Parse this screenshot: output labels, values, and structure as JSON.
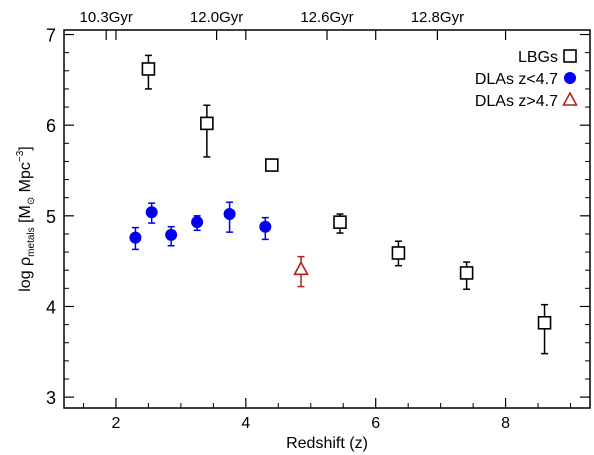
{
  "chart_data": {
    "type": "scatter",
    "xlabel": "Redshift (z)",
    "ylabel_parts": {
      "log": "log",
      "rho": "ρ",
      "rho_sub": "metals",
      "bracket_open": " [M",
      "sun": "⊙",
      "unit": " Mpc",
      "exp": "−3",
      "bracket_close": "]"
    },
    "xlim": [
      1.2,
      9.3
    ],
    "ylim": [
      2.88,
      7.05
    ],
    "x_ticks": [
      2,
      4,
      6,
      8
    ],
    "x_tick_labels": [
      "2",
      "4",
      "6",
      "8"
    ],
    "y_ticks": [
      3,
      4,
      5,
      6,
      7
    ],
    "y_tick_labels": [
      "3",
      "4",
      "5",
      "6",
      "7"
    ],
    "top_axis": {
      "ticks": [
        {
          "z": 1.85,
          "label": "10.3Gyr"
        },
        {
          "z": 3.55,
          "label": "12.0Gyr"
        },
        {
          "z": 5.25,
          "label": "12.6Gyr"
        },
        {
          "z": 6.95,
          "label": "12.8Gyr"
        }
      ]
    },
    "legend_position": "top-right",
    "series": [
      {
        "name": "LBGs",
        "marker": "open-square",
        "color": "#000000",
        "points": [
          {
            "x": 2.5,
            "y": 6.62,
            "y_lo": 6.4,
            "y_hi": 6.77
          },
          {
            "x": 3.4,
            "y": 6.02,
            "y_lo": 5.65,
            "y_hi": 6.22
          },
          {
            "x": 4.4,
            "y": 5.56,
            "y_lo": 5.51,
            "y_hi": 5.61
          },
          {
            "x": 5.45,
            "y": 4.93,
            "y_lo": 4.81,
            "y_hi": 5.02
          },
          {
            "x": 6.35,
            "y": 4.59,
            "y_lo": 4.45,
            "y_hi": 4.72
          },
          {
            "x": 7.4,
            "y": 4.37,
            "y_lo": 4.19,
            "y_hi": 4.49
          },
          {
            "x": 8.6,
            "y": 3.82,
            "y_lo": 3.48,
            "y_hi": 4.02
          }
        ]
      },
      {
        "name": "DLAs z<4.7",
        "marker": "filled-circle",
        "color": "#0000ee",
        "points": [
          {
            "x": 2.3,
            "y": 4.76,
            "y_lo": 4.63,
            "y_hi": 4.87
          },
          {
            "x": 2.55,
            "y": 5.04,
            "y_lo": 4.92,
            "y_hi": 5.14
          },
          {
            "x": 2.85,
            "y": 4.79,
            "y_lo": 4.67,
            "y_hi": 4.88
          },
          {
            "x": 3.25,
            "y": 4.93,
            "y_lo": 4.84,
            "y_hi": 5.0
          },
          {
            "x": 3.75,
            "y": 5.02,
            "y_lo": 4.82,
            "y_hi": 5.15
          },
          {
            "x": 4.3,
            "y": 4.88,
            "y_lo": 4.74,
            "y_hi": 4.98
          }
        ]
      },
      {
        "name": "DLAs z>4.7",
        "marker": "open-triangle",
        "color": "#b22222",
        "points": [
          {
            "x": 4.85,
            "y": 4.41,
            "y_lo": 4.22,
            "y_hi": 4.55
          }
        ]
      }
    ]
  }
}
